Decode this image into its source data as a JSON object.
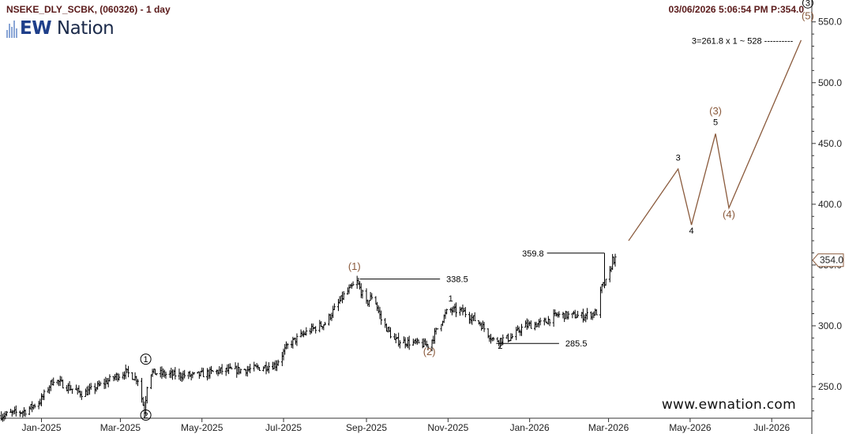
{
  "header": {
    "title": "NSEKE_DLY_SCBK, (060326) - 1 day",
    "datetime_price": "03/06/2026 5:06:54 PM  P:354.0"
  },
  "logo": {
    "part1": "EW",
    "part2": " Nation"
  },
  "watermark": "www.ewnation.com",
  "colors": {
    "wave": "#8a5a3c",
    "bars": "#000000",
    "labels": "#8a5a3c",
    "axis": "#333333"
  },
  "chart_data": {
    "type": "bar",
    "subtype": "ohlc",
    "ylim": [
      224,
      568
    ],
    "x_range": [
      "2024-12-01",
      "2026-07-31"
    ],
    "x_ticks": [
      {
        "date": "2025-01-01",
        "label": "Jan-2025"
      },
      {
        "date": "2025-03-01",
        "label": "Mar-2025"
      },
      {
        "date": "2025-05-01",
        "label": "May-2025"
      },
      {
        "date": "2025-07-01",
        "label": "Jul-2025"
      },
      {
        "date": "2025-09-01",
        "label": "Sep-2025"
      },
      {
        "date": "2025-11-01",
        "label": "Nov-2025"
      },
      {
        "date": "2026-01-01",
        "label": "Jan-2026"
      },
      {
        "date": "2026-03-01",
        "label": "Mar-2026"
      },
      {
        "date": "2026-05-01",
        "label": "May-2026"
      },
      {
        "date": "2026-07-01",
        "label": "Jul-2026"
      }
    ],
    "y_ticks": [
      {
        "value": 250,
        "label": "250.0"
      },
      {
        "value": 300,
        "label": "300.0"
      },
      {
        "value": 350,
        "label": "350.0"
      },
      {
        "value": 400,
        "label": "400.0"
      },
      {
        "value": 450,
        "label": "450.0"
      },
      {
        "value": 500,
        "label": "500.0"
      },
      {
        "value": 550,
        "label": "550.0"
      }
    ],
    "last_price": {
      "value": 354.0,
      "label": "354.0"
    },
    "price_path": [
      {
        "date": "2024-12-01",
        "price": 226
      },
      {
        "date": "2024-12-20",
        "price": 230
      },
      {
        "date": "2024-12-31",
        "price": 238
      },
      {
        "date": "2025-01-10",
        "price": 256
      },
      {
        "date": "2025-01-20",
        "price": 250
      },
      {
        "date": "2025-02-01",
        "price": 244
      },
      {
        "date": "2025-02-12",
        "price": 250
      },
      {
        "date": "2025-02-25",
        "price": 258
      },
      {
        "date": "2025-03-05",
        "price": 262
      },
      {
        "date": "2025-03-14",
        "price": 256
      },
      {
        "date": "2025-03-19",
        "price": 230
      },
      {
        "date": "2025-03-22",
        "price": 262
      },
      {
        "date": "2025-04-05",
        "price": 260
      },
      {
        "date": "2025-04-25",
        "price": 259
      },
      {
        "date": "2025-05-15",
        "price": 263
      },
      {
        "date": "2025-06-05",
        "price": 264
      },
      {
        "date": "2025-06-25",
        "price": 268
      },
      {
        "date": "2025-07-05",
        "price": 285
      },
      {
        "date": "2025-07-20",
        "price": 296
      },
      {
        "date": "2025-08-01",
        "price": 302
      },
      {
        "date": "2025-08-15",
        "price": 325
      },
      {
        "date": "2025-08-25",
        "price": 336
      },
      {
        "date": "2025-09-01",
        "price": 318
      },
      {
        "date": "2025-09-06",
        "price": 326
      },
      {
        "date": "2025-09-12",
        "price": 305
      },
      {
        "date": "2025-09-22",
        "price": 288
      },
      {
        "date": "2025-10-05",
        "price": 286
      },
      {
        "date": "2025-10-18",
        "price": 284
      },
      {
        "date": "2025-10-25",
        "price": 300
      },
      {
        "date": "2025-11-01",
        "price": 313
      },
      {
        "date": "2025-11-12",
        "price": 312
      },
      {
        "date": "2025-11-25",
        "price": 302
      },
      {
        "date": "2025-12-05",
        "price": 288
      },
      {
        "date": "2025-12-18",
        "price": 290
      },
      {
        "date": "2025-12-28",
        "price": 300
      },
      {
        "date": "2026-01-10",
        "price": 302
      },
      {
        "date": "2026-01-22",
        "price": 309
      },
      {
        "date": "2026-02-10",
        "price": 308
      },
      {
        "date": "2026-02-20",
        "price": 311
      },
      {
        "date": "2026-02-24",
        "price": 332
      },
      {
        "date": "2026-03-01",
        "price": 338
      },
      {
        "date": "2026-03-04",
        "price": 355
      },
      {
        "date": "2026-03-06",
        "price": 354
      }
    ],
    "projection": [
      {
        "date": "2026-03-16",
        "price": 370
      },
      {
        "date": "2026-04-22",
        "price": 429
      },
      {
        "date": "2026-05-02",
        "price": 383
      },
      {
        "date": "2026-05-20",
        "price": 458
      },
      {
        "date": "2026-05-30",
        "price": 397
      },
      {
        "date": "2026-07-23",
        "price": 535
      }
    ],
    "wave_labels": [
      {
        "text": "1",
        "style": "circle",
        "date": "2025-03-20",
        "price": 270
      },
      {
        "text": "2",
        "style": "circle",
        "date": "2025-03-20",
        "price": 224
      },
      {
        "text": "(1)",
        "style": "paren",
        "date": "2025-08-23",
        "price": 346
      },
      {
        "text": "(2)",
        "style": "paren",
        "date": "2025-10-18",
        "price": 276
      },
      {
        "text": "1",
        "style": "plain",
        "date": "2025-11-03",
        "price": 320
      },
      {
        "text": "2",
        "style": "plain",
        "date": "2025-12-10",
        "price": 281
      },
      {
        "text": "3",
        "style": "plain",
        "date": "2026-04-22",
        "price": 436
      },
      {
        "text": "4",
        "style": "plain",
        "date": "2026-05-02",
        "price": 376
      },
      {
        "text": "5",
        "style": "plain",
        "date": "2026-05-20",
        "price": 465
      },
      {
        "text": "(3)",
        "style": "paren",
        "date": "2026-05-20",
        "price": 474
      },
      {
        "text": "(4)",
        "style": "paren",
        "date": "2026-05-30",
        "price": 389
      },
      {
        "text": "(5)",
        "style": "paren",
        "date": "2026-07-28",
        "price": 552
      },
      {
        "text": "3",
        "style": "circle",
        "date": "2026-07-28",
        "price": 563
      }
    ],
    "levels": [
      {
        "label": "338.5",
        "value": 338.5,
        "from": "2025-08-27",
        "to": "2025-10-26"
      },
      {
        "label": "359.8",
        "value": 359.8,
        "from": "2026-01-14",
        "to": "2026-02-26"
      },
      {
        "label": "285.5",
        "value": 285.5,
        "from": "2025-12-07",
        "to": "2026-01-23"
      }
    ],
    "annotations": [
      {
        "text": "3=261.8 x 1 ~ 528 ----------",
        "date": "2026-07-17",
        "price": 532
      }
    ]
  }
}
